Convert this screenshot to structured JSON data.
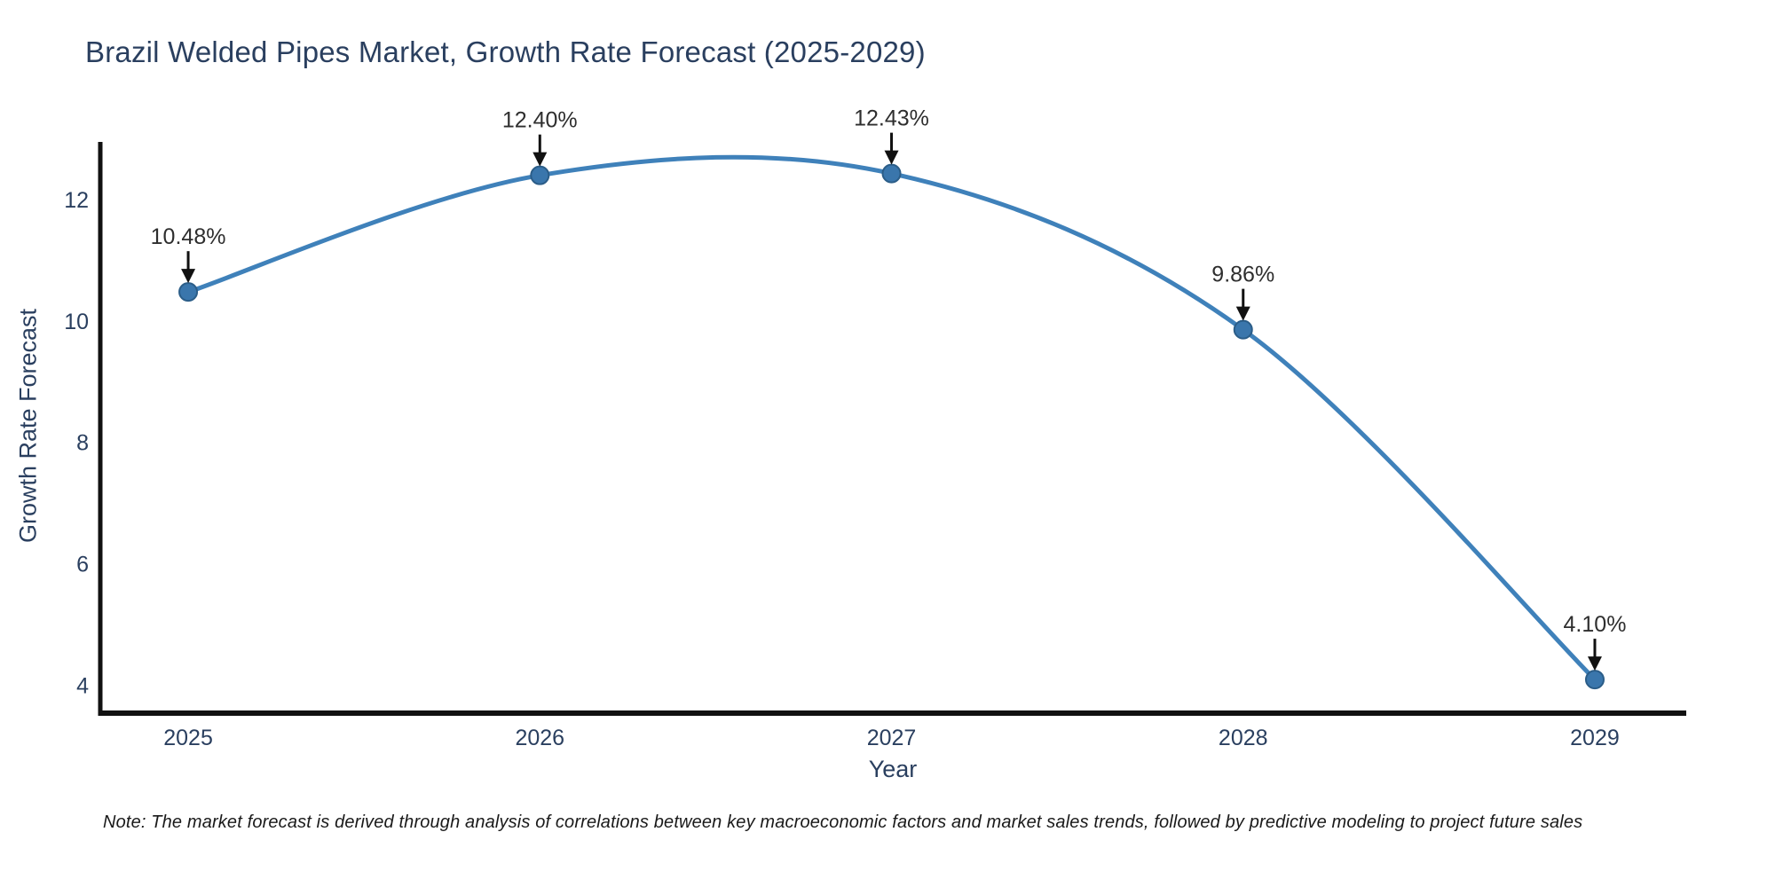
{
  "chart_data": {
    "type": "line",
    "line_shape": "spline",
    "title": "Brazil Welded Pipes Market, Growth Rate Forecast (2025-2029)",
    "xlabel": "Year",
    "ylabel": "Growth Rate Forecast",
    "categories": [
      2025,
      2026,
      2027,
      2028,
      2029
    ],
    "values": [
      10.48,
      12.4,
      12.43,
      9.86,
      4.1
    ],
    "point_labels": [
      "10.48%",
      "12.40%",
      "12.43%",
      "9.86%",
      "4.10%"
    ],
    "x_tick_labels": [
      "2025",
      "2026",
      "2027",
      "2028",
      "2029"
    ],
    "y_ticks": [
      4,
      6,
      8,
      10,
      12
    ],
    "xlim": [
      2024.75,
      2029.26
    ],
    "ylim": [
      3.59,
      12.95
    ],
    "grid": false,
    "legend": "none",
    "colors": {
      "line": "#3f81ba",
      "marker_fill": "#3a76ac",
      "marker_edge": "#2b5d88",
      "axis_line": "#111111",
      "axis_text": "#2a3f5f",
      "annotation_text": "#2e2e2e",
      "arrow": "#111111",
      "title_text": "#2a3f5f"
    }
  },
  "note": {
    "text": "Note: The market forecast is derived through analysis of correlations between key macroeconomic factors and market sales trends, followed by predictive modeling to project future sales"
  }
}
